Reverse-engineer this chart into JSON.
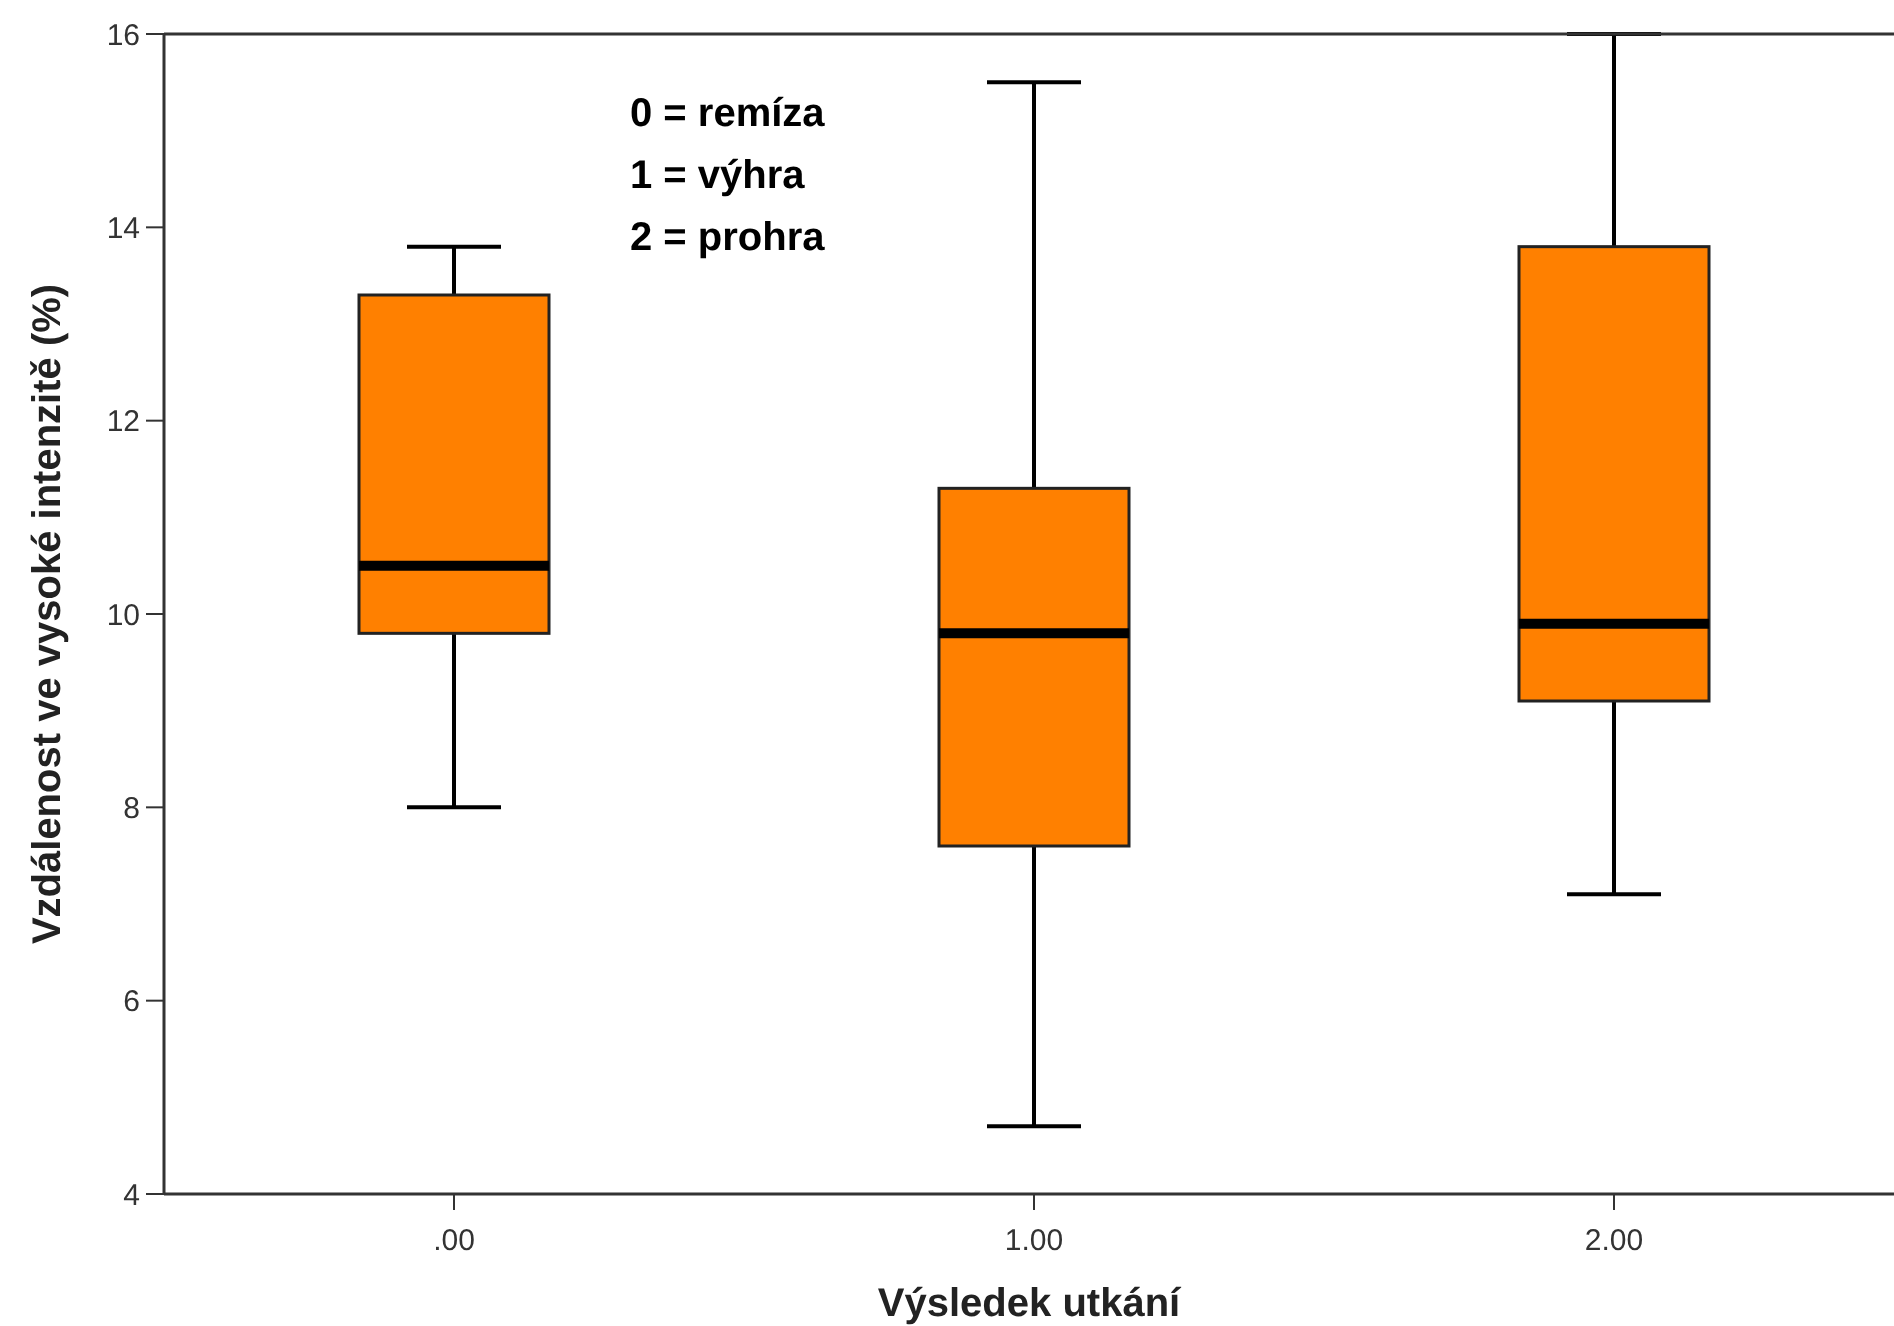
{
  "chart_data": {
    "type": "box",
    "xlabel": "Výsledek utkání",
    "ylabel": "Vzdálenost ve vysoké intenzitě (%)",
    "categories": [
      ".00",
      "1.00",
      "2.00"
    ],
    "series": [
      {
        "color": "#ff8000",
        "boxes": [
          {
            "low": 8.0,
            "q1": 9.8,
            "median": 10.5,
            "q3": 13.3,
            "high": 13.8
          },
          {
            "low": 4.7,
            "q1": 7.6,
            "median": 9.8,
            "q3": 11.3,
            "high": 15.5
          },
          {
            "low": 7.1,
            "q1": 9.1,
            "median": 9.9,
            "q3": 13.8,
            "high": 16.0
          }
        ]
      }
    ],
    "ylim": [
      4,
      16
    ],
    "yticks": [
      4,
      6,
      8,
      10,
      12,
      14,
      16
    ],
    "grid": false,
    "annotations": [
      "0 = remíza",
      "1 = výhra",
      "2 = prohra"
    ]
  }
}
